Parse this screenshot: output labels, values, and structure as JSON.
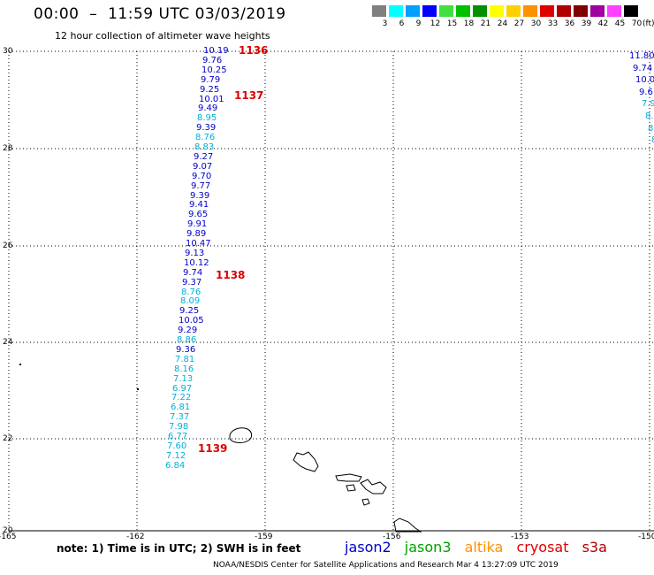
{
  "header": {
    "title": "00:00  –  11:59 UTC 03/03/2019",
    "subtitle": "12 hour collection of altimeter wave heights"
  },
  "color_scale": {
    "unit": "(ft)",
    "bins": [
      {
        "label": "3",
        "color": "#808080"
      },
      {
        "label": "6",
        "color": "#00ffff"
      },
      {
        "label": "9",
        "color": "#00a0ff"
      },
      {
        "label": "12",
        "color": "#0000ff"
      },
      {
        "label": "15",
        "color": "#40e040"
      },
      {
        "label": "18",
        "color": "#00c000"
      },
      {
        "label": "21",
        "color": "#009000"
      },
      {
        "label": "24",
        "color": "#ffff00"
      },
      {
        "label": "27",
        "color": "#ffd000"
      },
      {
        "label": "30",
        "color": "#ff9000"
      },
      {
        "label": "33",
        "color": "#e00000"
      },
      {
        "label": "36",
        "color": "#b00000"
      },
      {
        "label": "39",
        "color": "#800000"
      },
      {
        "label": "42",
        "color": "#a000a0"
      },
      {
        "label": "45",
        "color": "#ff40ff"
      },
      {
        "label": "70",
        "color": "#000000"
      }
    ]
  },
  "axes": {
    "lat_labels": [
      "30",
      "28",
      "26",
      "24",
      "22",
      "20"
    ],
    "lon_labels": [
      "-165",
      "-162",
      "-159",
      "-156",
      "-153",
      "-150"
    ]
  },
  "colors": {
    "jason2": "#0000c8",
    "jason3": "#00a000",
    "altika": "#ff9000",
    "cryosat": "#e00000",
    "s3a": "#b00000",
    "light_swh": "#00b0d8",
    "pass_label": "#dd0000"
  },
  "tracks": [
    {
      "name": "track-main",
      "points": [
        {
          "value": "10.19",
          "color": "blue"
        },
        {
          "value": "9.76",
          "color": "blue"
        },
        {
          "value": "10.25",
          "color": "blue"
        },
        {
          "value": "9.79",
          "color": "blue"
        },
        {
          "value": "9.25",
          "color": "blue"
        },
        {
          "value": "10.01",
          "color": "blue"
        },
        {
          "value": "9.49",
          "color": "blue"
        },
        {
          "value": "8.95",
          "color": "light"
        },
        {
          "value": "9.39",
          "color": "blue"
        },
        {
          "value": "8.76",
          "color": "light"
        },
        {
          "value": "8.83",
          "color": "light"
        },
        {
          "value": "9.27",
          "color": "blue"
        },
        {
          "value": "9.07",
          "color": "blue"
        },
        {
          "value": "9.70",
          "color": "blue"
        },
        {
          "value": "9.77",
          "color": "blue"
        },
        {
          "value": "9.39",
          "color": "blue"
        },
        {
          "value": "9.41",
          "color": "blue"
        },
        {
          "value": "9.65",
          "color": "blue"
        },
        {
          "value": "9.91",
          "color": "blue"
        },
        {
          "value": "9.89",
          "color": "blue"
        },
        {
          "value": "10.47",
          "color": "blue"
        },
        {
          "value": "9.13",
          "color": "blue"
        },
        {
          "value": "10.12",
          "color": "blue"
        },
        {
          "value": "9.74",
          "color": "blue"
        },
        {
          "value": "9.37",
          "color": "blue"
        },
        {
          "value": "8.76",
          "color": "light"
        },
        {
          "value": "8.09",
          "color": "light"
        },
        {
          "value": "9.25",
          "color": "blue"
        },
        {
          "value": "10.05",
          "color": "blue"
        },
        {
          "value": "9.29",
          "color": "blue"
        },
        {
          "value": "8.86",
          "color": "light"
        },
        {
          "value": "9.36",
          "color": "blue"
        },
        {
          "value": "7.81",
          "color": "light"
        },
        {
          "value": "8.16",
          "color": "light"
        },
        {
          "value": "7.13",
          "color": "light"
        },
        {
          "value": "6.97",
          "color": "light"
        },
        {
          "value": "7.22",
          "color": "light"
        },
        {
          "value": "6.81",
          "color": "light"
        },
        {
          "value": "7.37",
          "color": "light"
        },
        {
          "value": "7.98",
          "color": "light"
        },
        {
          "value": "6.77",
          "color": "light"
        },
        {
          "value": "7.60",
          "color": "light"
        },
        {
          "value": "7.12",
          "color": "light"
        },
        {
          "value": "6.84",
          "color": "light"
        }
      ]
    },
    {
      "name": "track-east",
      "points": [
        {
          "value": "11.80",
          "color": "blue"
        },
        {
          "value": "9.74",
          "color": "blue"
        },
        {
          "value": "10.0",
          "color": "blue"
        },
        {
          "value": "9.6",
          "color": "blue"
        },
        {
          "value": "7.9",
          "color": "light"
        },
        {
          "value": "8.",
          "color": "light"
        },
        {
          "value": "8",
          "color": "light"
        },
        {
          "value": "8",
          "color": "light"
        }
      ]
    }
  ],
  "pass_labels": [
    "1136",
    "1137",
    "1138",
    "1139"
  ],
  "note": "note:  1) Time is in UTC;  2) SWH is in feet",
  "legend": [
    {
      "label": "jason2",
      "color": "#0000c8"
    },
    {
      "label": "jason3",
      "color": "#00a000"
    },
    {
      "label": "altika",
      "color": "#ff9000"
    },
    {
      "label": "cryosat",
      "color": "#e00000"
    },
    {
      "label": "s3a",
      "color": "#b00000"
    }
  ],
  "footer": "NOAA/NESDIS Center for Satellite Applications and Research    Mar  4 13:27:09 UTC 2019"
}
